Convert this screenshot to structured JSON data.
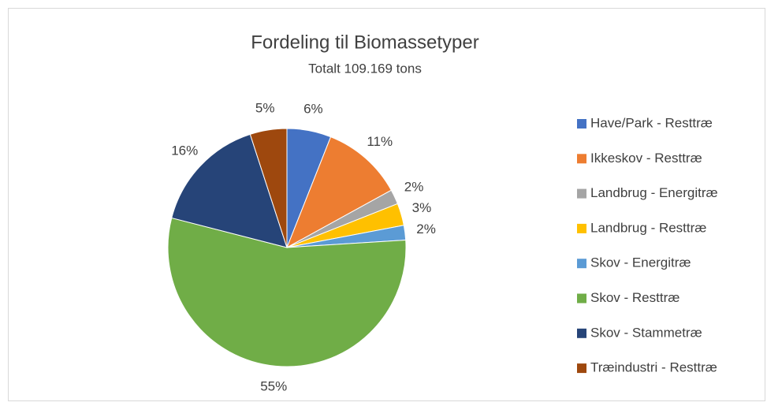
{
  "chart_data": {
    "type": "pie",
    "title": "Fordeling til Biomassetyper",
    "subtitle": "Totalt 109.169 tons",
    "categories": [
      "Have/Park - Resttræ",
      "Ikkeskov - Resttræ",
      "Landbrug - Energitræ",
      "Landbrug - Resttræ",
      "Skov - Energitræ",
      "Skov - Resttræ",
      "Skov - Stammetræ",
      "Træindustri - Resttræ"
    ],
    "values": [
      6,
      11,
      2,
      3,
      2,
      55,
      16,
      5
    ],
    "value_labels": [
      "6%",
      "11%",
      "2%",
      "3%",
      "2%",
      "55%",
      "16%",
      "5%"
    ],
    "colors": [
      "#4472c4",
      "#ed7d31",
      "#a5a5a5",
      "#ffc000",
      "#5b9bd5",
      "#70ad47",
      "#264478",
      "#9e480e"
    ],
    "legend": "right"
  }
}
